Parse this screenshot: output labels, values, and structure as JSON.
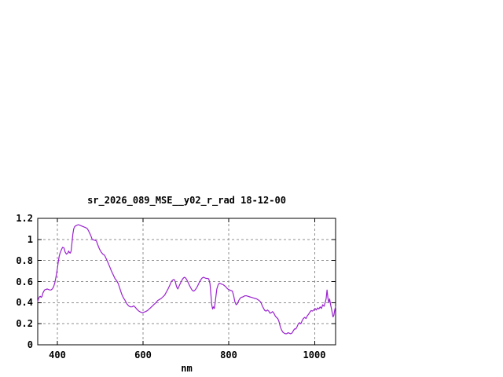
{
  "window": {
    "background": "#ffffff"
  },
  "chart": {
    "title": "sr_2026_089_MSE__y02_r_rad 18-12-00",
    "xlabel": "nm",
    "x_tick_labels": [
      "400",
      "600",
      "800",
      "1000"
    ],
    "y_tick_labels": [
      "0",
      "0.2",
      "0.4",
      "0.6",
      "0.8",
      "1",
      "1.2"
    ]
  },
  "chart_data": {
    "type": "line",
    "title": "sr_2026_089_MSE__y02_r_rad 18-12-00",
    "xlabel": "nm",
    "ylabel": "",
    "xlim": [
      354,
      1049
    ],
    "ylim": [
      0,
      1.2
    ],
    "x_tick_values": [
      400,
      600,
      800,
      1000
    ],
    "y_tick_values": [
      0,
      0.2,
      0.4,
      0.6,
      0.8,
      1,
      1.2
    ],
    "grid": true,
    "legend_position": "none",
    "colors": {
      "line": "#9a22cf",
      "grid": "#8f8f8f",
      "axis": "#000000",
      "text": "#000000",
      "background": "#ffffff"
    },
    "series": [
      {
        "name": "sr_2026_089_MSE__y02_r_rad",
        "points": [
          [
            354,
            0.41
          ],
          [
            356,
            0.44
          ],
          [
            358,
            0.455
          ],
          [
            360,
            0.46
          ],
          [
            362,
            0.45
          ],
          [
            364,
            0.46
          ],
          [
            366,
            0.49
          ],
          [
            368,
            0.505
          ],
          [
            370,
            0.52
          ],
          [
            373,
            0.525
          ],
          [
            376,
            0.53
          ],
          [
            379,
            0.525
          ],
          [
            382,
            0.52
          ],
          [
            385,
            0.52
          ],
          [
            388,
            0.53
          ],
          [
            391,
            0.55
          ],
          [
            394,
            0.59
          ],
          [
            397,
            0.65
          ],
          [
            400,
            0.73
          ],
          [
            402,
            0.79
          ],
          [
            404,
            0.84
          ],
          [
            406,
            0.87
          ],
          [
            409,
            0.9
          ],
          [
            412,
            0.925
          ],
          [
            415,
            0.92
          ],
          [
            418,
            0.88
          ],
          [
            421,
            0.86
          ],
          [
            424,
            0.87
          ],
          [
            426,
            0.89
          ],
          [
            428,
            0.875
          ],
          [
            430,
            0.87
          ],
          [
            432,
            0.89
          ],
          [
            434,
            0.97
          ],
          [
            436,
            1.05
          ],
          [
            438,
            1.1
          ],
          [
            440,
            1.12
          ],
          [
            443,
            1.13
          ],
          [
            446,
            1.135
          ],
          [
            449,
            1.14
          ],
          [
            452,
            1.135
          ],
          [
            455,
            1.13
          ],
          [
            458,
            1.125
          ],
          [
            461,
            1.12
          ],
          [
            464,
            1.115
          ],
          [
            467,
            1.11
          ],
          [
            470,
            1.1
          ],
          [
            474,
            1.07
          ],
          [
            478,
            1.035
          ],
          [
            481,
            1.0
          ],
          [
            485,
            0.995
          ],
          [
            488,
            0.99
          ],
          [
            491,
            0.985
          ],
          [
            494,
            0.95
          ],
          [
            498,
            0.91
          ],
          [
            502,
            0.88
          ],
          [
            506,
            0.86
          ],
          [
            510,
            0.85
          ],
          [
            514,
            0.815
          ],
          [
            518,
            0.78
          ],
          [
            522,
            0.74
          ],
          [
            526,
            0.7
          ],
          [
            530,
            0.665
          ],
          [
            534,
            0.63
          ],
          [
            538,
            0.61
          ],
          [
            542,
            0.58
          ],
          [
            546,
            0.53
          ],
          [
            550,
            0.48
          ],
          [
            554,
            0.445
          ],
          [
            558,
            0.42
          ],
          [
            562,
            0.39
          ],
          [
            566,
            0.37
          ],
          [
            570,
            0.36
          ],
          [
            574,
            0.36
          ],
          [
            578,
            0.37
          ],
          [
            582,
            0.355
          ],
          [
            586,
            0.335
          ],
          [
            590,
            0.32
          ],
          [
            594,
            0.31
          ],
          [
            598,
            0.305
          ],
          [
            602,
            0.31
          ],
          [
            606,
            0.315
          ],
          [
            610,
            0.325
          ],
          [
            614,
            0.34
          ],
          [
            618,
            0.355
          ],
          [
            622,
            0.37
          ],
          [
            626,
            0.385
          ],
          [
            630,
            0.4
          ],
          [
            634,
            0.42
          ],
          [
            638,
            0.43
          ],
          [
            642,
            0.44
          ],
          [
            646,
            0.455
          ],
          [
            650,
            0.47
          ],
          [
            654,
            0.5
          ],
          [
            658,
            0.53
          ],
          [
            662,
            0.565
          ],
          [
            666,
            0.6
          ],
          [
            669,
            0.615
          ],
          [
            672,
            0.62
          ],
          [
            675,
            0.6
          ],
          [
            678,
            0.55
          ],
          [
            681,
            0.53
          ],
          [
            684,
            0.56
          ],
          [
            687,
            0.585
          ],
          [
            690,
            0.61
          ],
          [
            693,
            0.63
          ],
          [
            696,
            0.64
          ],
          [
            699,
            0.635
          ],
          [
            702,
            0.615
          ],
          [
            705,
            0.59
          ],
          [
            708,
            0.565
          ],
          [
            711,
            0.54
          ],
          [
            714,
            0.52
          ],
          [
            717,
            0.51
          ],
          [
            720,
            0.515
          ],
          [
            723,
            0.53
          ],
          [
            726,
            0.55
          ],
          [
            729,
            0.575
          ],
          [
            732,
            0.6
          ],
          [
            735,
            0.62
          ],
          [
            738,
            0.635
          ],
          [
            741,
            0.64
          ],
          [
            744,
            0.635
          ],
          [
            747,
            0.63
          ],
          [
            750,
            0.63
          ],
          [
            753,
            0.625
          ],
          [
            756,
            0.58
          ],
          [
            758,
            0.48
          ],
          [
            760,
            0.38
          ],
          [
            762,
            0.34
          ],
          [
            764,
            0.36
          ],
          [
            766,
            0.345
          ],
          [
            768,
            0.4
          ],
          [
            770,
            0.47
          ],
          [
            772,
            0.53
          ],
          [
            775,
            0.57
          ],
          [
            778,
            0.585
          ],
          [
            781,
            0.58
          ],
          [
            784,
            0.575
          ],
          [
            787,
            0.57
          ],
          [
            790,
            0.56
          ],
          [
            793,
            0.55
          ],
          [
            796,
            0.535
          ],
          [
            799,
            0.525
          ],
          [
            802,
            0.52
          ],
          [
            805,
            0.515
          ],
          [
            808,
            0.51
          ],
          [
            811,
            0.47
          ],
          [
            814,
            0.41
          ],
          [
            817,
            0.38
          ],
          [
            820,
            0.39
          ],
          [
            823,
            0.42
          ],
          [
            826,
            0.44
          ],
          [
            829,
            0.45
          ],
          [
            833,
            0.455
          ],
          [
            837,
            0.465
          ],
          [
            841,
            0.465
          ],
          [
            845,
            0.46
          ],
          [
            849,
            0.455
          ],
          [
            853,
            0.45
          ],
          [
            857,
            0.445
          ],
          [
            861,
            0.44
          ],
          [
            865,
            0.435
          ],
          [
            869,
            0.425
          ],
          [
            872,
            0.415
          ],
          [
            875,
            0.4
          ],
          [
            878,
            0.37
          ],
          [
            881,
            0.345
          ],
          [
            884,
            0.325
          ],
          [
            887,
            0.32
          ],
          [
            890,
            0.33
          ],
          [
            893,
            0.32
          ],
          [
            896,
            0.3
          ],
          [
            899,
            0.305
          ],
          [
            902,
            0.315
          ],
          [
            905,
            0.3
          ],
          [
            908,
            0.275
          ],
          [
            911,
            0.26
          ],
          [
            914,
            0.25
          ],
          [
            917,
            0.22
          ],
          [
            920,
            0.17
          ],
          [
            923,
            0.14
          ],
          [
            926,
            0.12
          ],
          [
            929,
            0.11
          ],
          [
            932,
            0.105
          ],
          [
            935,
            0.105
          ],
          [
            938,
            0.115
          ],
          [
            941,
            0.11
          ],
          [
            944,
            0.105
          ],
          [
            947,
            0.11
          ],
          [
            950,
            0.13
          ],
          [
            953,
            0.15
          ],
          [
            956,
            0.15
          ],
          [
            959,
            0.17
          ],
          [
            962,
            0.2
          ],
          [
            965,
            0.21
          ],
          [
            968,
            0.2
          ],
          [
            971,
            0.23
          ],
          [
            974,
            0.25
          ],
          [
            977,
            0.26
          ],
          [
            980,
            0.25
          ],
          [
            983,
            0.275
          ],
          [
            986,
            0.29
          ],
          [
            989,
            0.31
          ],
          [
            992,
            0.325
          ],
          [
            995,
            0.32
          ],
          [
            998,
            0.33
          ],
          [
            1001,
            0.345
          ],
          [
            1004,
            0.33
          ],
          [
            1007,
            0.35
          ],
          [
            1010,
            0.34
          ],
          [
            1013,
            0.36
          ],
          [
            1016,
            0.345
          ],
          [
            1019,
            0.38
          ],
          [
            1022,
            0.365
          ],
          [
            1025,
            0.405
          ],
          [
            1027,
            0.44
          ],
          [
            1029,
            0.52
          ],
          [
            1031,
            0.445
          ],
          [
            1033,
            0.4
          ],
          [
            1035,
            0.435
          ],
          [
            1037,
            0.385
          ],
          [
            1039,
            0.35
          ],
          [
            1041,
            0.31
          ],
          [
            1043,
            0.265
          ],
          [
            1045,
            0.28
          ],
          [
            1047,
            0.33
          ],
          [
            1049,
            0.36
          ]
        ]
      }
    ]
  }
}
